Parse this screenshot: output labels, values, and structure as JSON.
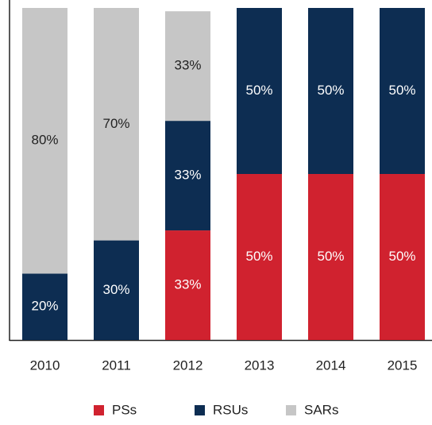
{
  "chart_data": {
    "type": "stacked_bar",
    "categories": [
      "2010",
      "2011",
      "2012",
      "2013",
      "2014",
      "2015"
    ],
    "series": [
      {
        "name": "PSs",
        "color": "#d0222f",
        "label_color": "#ffffff",
        "values": [
          null,
          null,
          33,
          50,
          50,
          50
        ],
        "value_labels": [
          null,
          null,
          "33%",
          "50%",
          "50%",
          "50%"
        ]
      },
      {
        "name": "RSUs",
        "color": "#0d2d52",
        "label_color": "#ffffff",
        "values": [
          20,
          30,
          33,
          50,
          50,
          50
        ],
        "value_labels": [
          "20%",
          "30%",
          "33%",
          "50%",
          "50%",
          "50%"
        ]
      },
      {
        "name": "SARs",
        "color": "#c6c6c6",
        "label_color": "#222222",
        "values": [
          80,
          70,
          33,
          null,
          null,
          null
        ],
        "value_labels": [
          "80%",
          "70%",
          "33%",
          null,
          null,
          null
        ]
      }
    ],
    "ylim": [
      0,
      100
    ],
    "legend": "bottom"
  }
}
